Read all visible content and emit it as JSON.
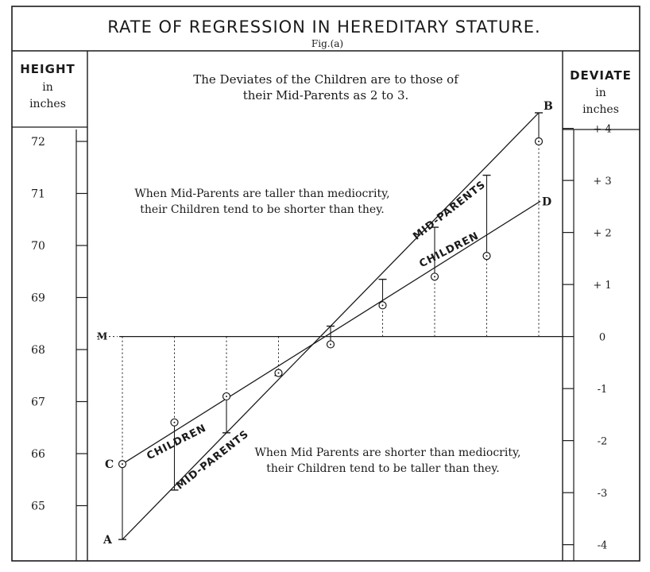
{
  "title": "RATE OF REGRESSION IN HEREDITARY STATURE.",
  "subtitle": "Fig.(a)",
  "left_header": {
    "title": "HEIGHT",
    "line1": "in",
    "line2": "inches"
  },
  "right_header": {
    "title": "DEVIATE",
    "line1": "in",
    "line2": "inches"
  },
  "annotations": {
    "top_line1": "The Deviates of the Children are to those of",
    "top_line2": "their Mid-Parents as 2 to 3.",
    "upper_line1": "When Mid-Parents are taller than mediocrity,",
    "upper_line2": "their Children tend to be shorter than they.",
    "lower_line1": "When Mid Parents are shorter than mediocrity,",
    "lower_line2": "their Children tend to be taller than they."
  },
  "point_labels": {
    "A": "A",
    "B": "B",
    "C": "C",
    "D": "D",
    "M": "M"
  },
  "colors": {
    "ink": "#1a1a1a",
    "paper": "#ffffff"
  },
  "chart_data": {
    "type": "line",
    "left_axis": {
      "label": "HEIGHT in inches",
      "ticks": [
        65,
        66,
        67,
        68,
        69,
        70,
        71,
        72
      ],
      "tick_labels": [
        "65",
        "66",
        "67",
        "68",
        "69",
        "70",
        "71",
        "72"
      ]
    },
    "right_axis": {
      "label": "DEVIATE in inches",
      "ticks": [
        4,
        3,
        2,
        1,
        0,
        -1,
        -2,
        -3,
        -4
      ],
      "tick_labels": [
        "+ 4",
        "+ 3",
        "+ 2",
        "+ 1",
        "0",
        "-1",
        "-2",
        "-3",
        "-4"
      ]
    },
    "mediocrity_height": 68.25,
    "x": [
      -4,
      -3,
      -2,
      -1,
      0,
      1,
      2,
      3,
      4
    ],
    "series": [
      {
        "name": "MID-PARENTS",
        "line_from": "A",
        "line_to": "B",
        "values": [
          64.35,
          65.3,
          66.4,
          67.5,
          68.45,
          69.35,
          70.35,
          71.35,
          72.55
        ],
        "marker": "tick"
      },
      {
        "name": "CHILDREN",
        "line_from": "C",
        "line_to": "D",
        "values": [
          65.8,
          66.6,
          67.1,
          67.55,
          68.1,
          68.85,
          69.4,
          69.8,
          72.0
        ],
        "marker": "circle"
      }
    ]
  }
}
